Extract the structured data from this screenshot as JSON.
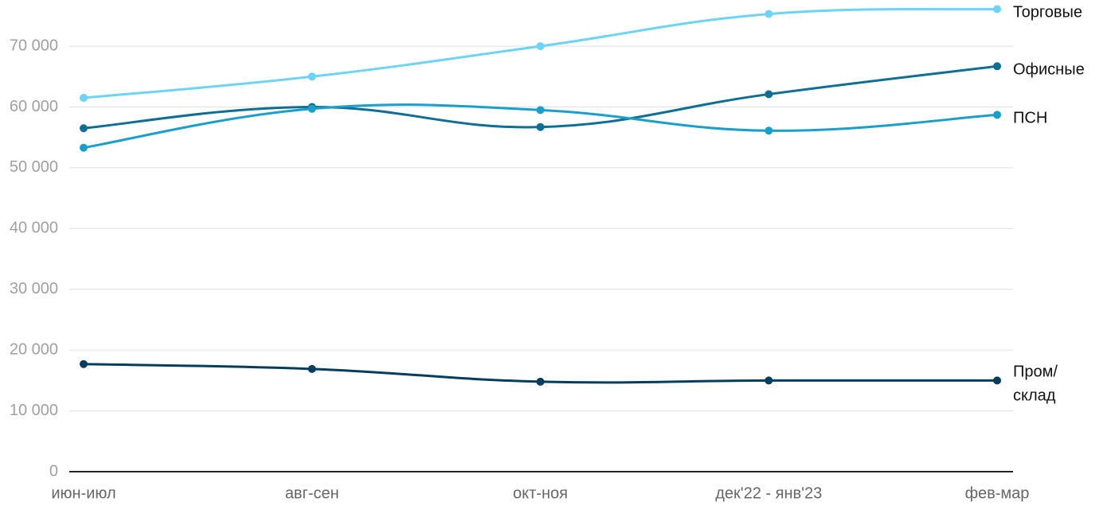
{
  "chart_data": {
    "type": "line",
    "categories": [
      "июн-июл",
      "авг-сен",
      "окт-ноя",
      "дек'22 - янв'23",
      "фев-мар"
    ],
    "series": [
      {
        "name": "Торговые",
        "color": "#6dd3f7",
        "values": [
          61500,
          65000,
          70000,
          75300,
          76100
        ]
      },
      {
        "name": "Офисные",
        "color": "#0e6e94",
        "values": [
          56500,
          60000,
          56700,
          62100,
          66700
        ]
      },
      {
        "name": "ПСН",
        "color": "#1a9fcc",
        "values": [
          53300,
          59700,
          59500,
          56100,
          58700
        ]
      },
      {
        "name": "Пром/склад",
        "color": "#053d5e",
        "values": [
          17700,
          16900,
          14800,
          15000,
          15000
        ]
      }
    ],
    "ylim": [
      0,
      77600
    ],
    "yticks": [
      0,
      {
        "value": 10000,
        "label": "10 000"
      },
      {
        "value": 20000,
        "label": "20 000"
      },
      {
        "value": 30000,
        "label": "30 000"
      },
      {
        "value": 40000,
        "label": "40 000"
      },
      {
        "value": 50000,
        "label": "50 000"
      },
      {
        "value": 60000,
        "label": "60 000"
      },
      {
        "value": 70000,
        "label": "70 000"
      }
    ],
    "grid": true
  }
}
